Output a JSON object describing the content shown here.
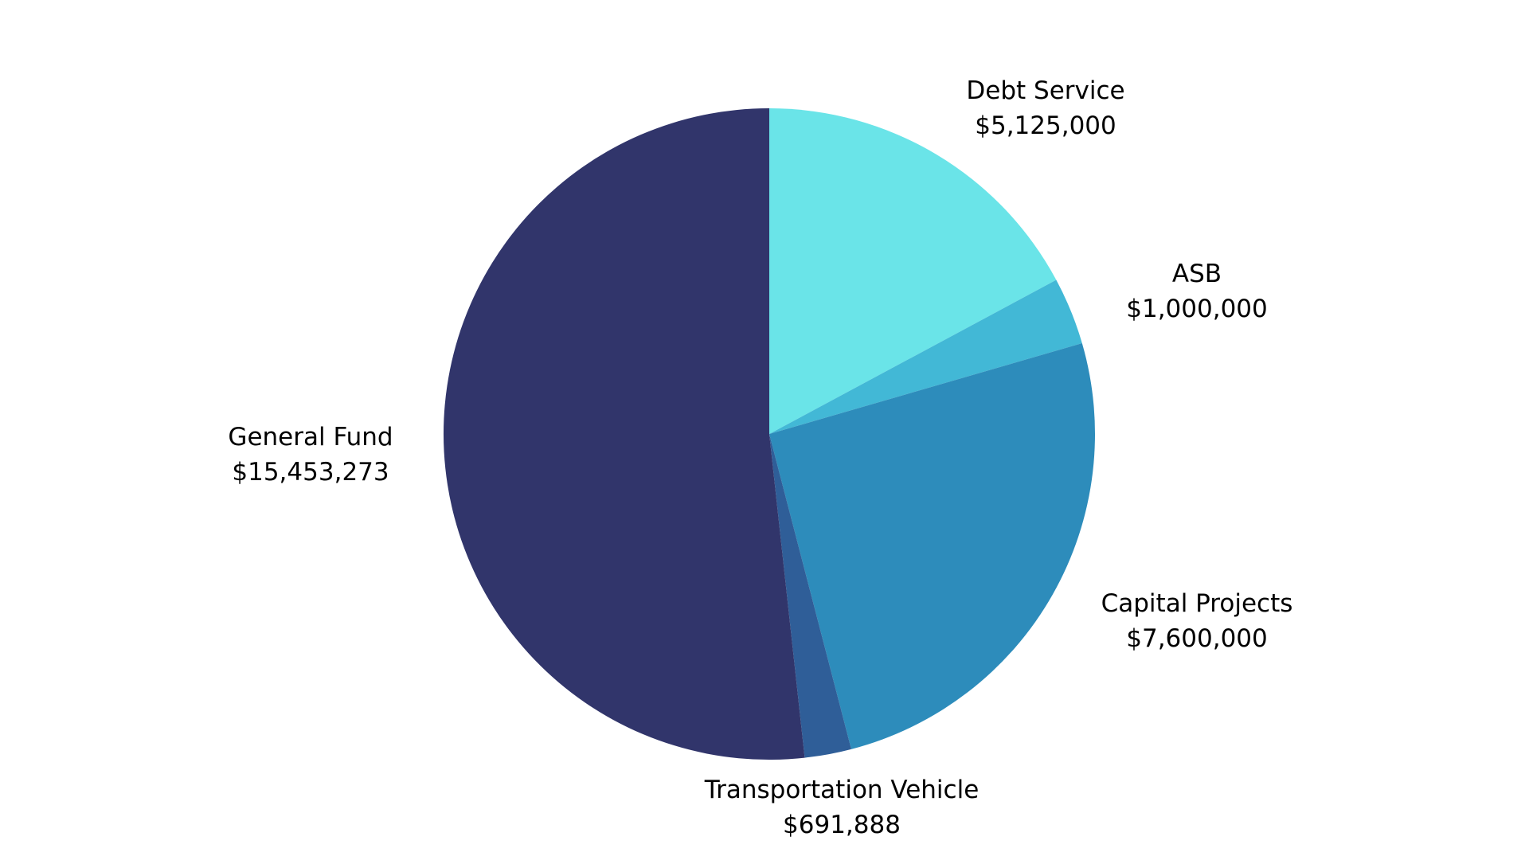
{
  "chart_data": {
    "type": "pie",
    "title": "",
    "legend": "none",
    "slices": [
      {
        "name": "Debt Service",
        "value": 5125000,
        "display": "$5,125,000",
        "color": "#6ae4e8"
      },
      {
        "name": "ASB",
        "value": 1000000,
        "display": "$1,000,000",
        "color": "#42b8d6"
      },
      {
        "name": "Capital Projects",
        "value": 7600000,
        "display": "$7,600,000",
        "color": "#2d8cbb"
      },
      {
        "name": "Transportation Vehicle",
        "value": 691888,
        "display": "$691,888",
        "color": "#2f5e98"
      },
      {
        "name": "General Fund",
        "value": 15453273,
        "display": "$15,453,273",
        "color": "#31356b"
      }
    ]
  }
}
